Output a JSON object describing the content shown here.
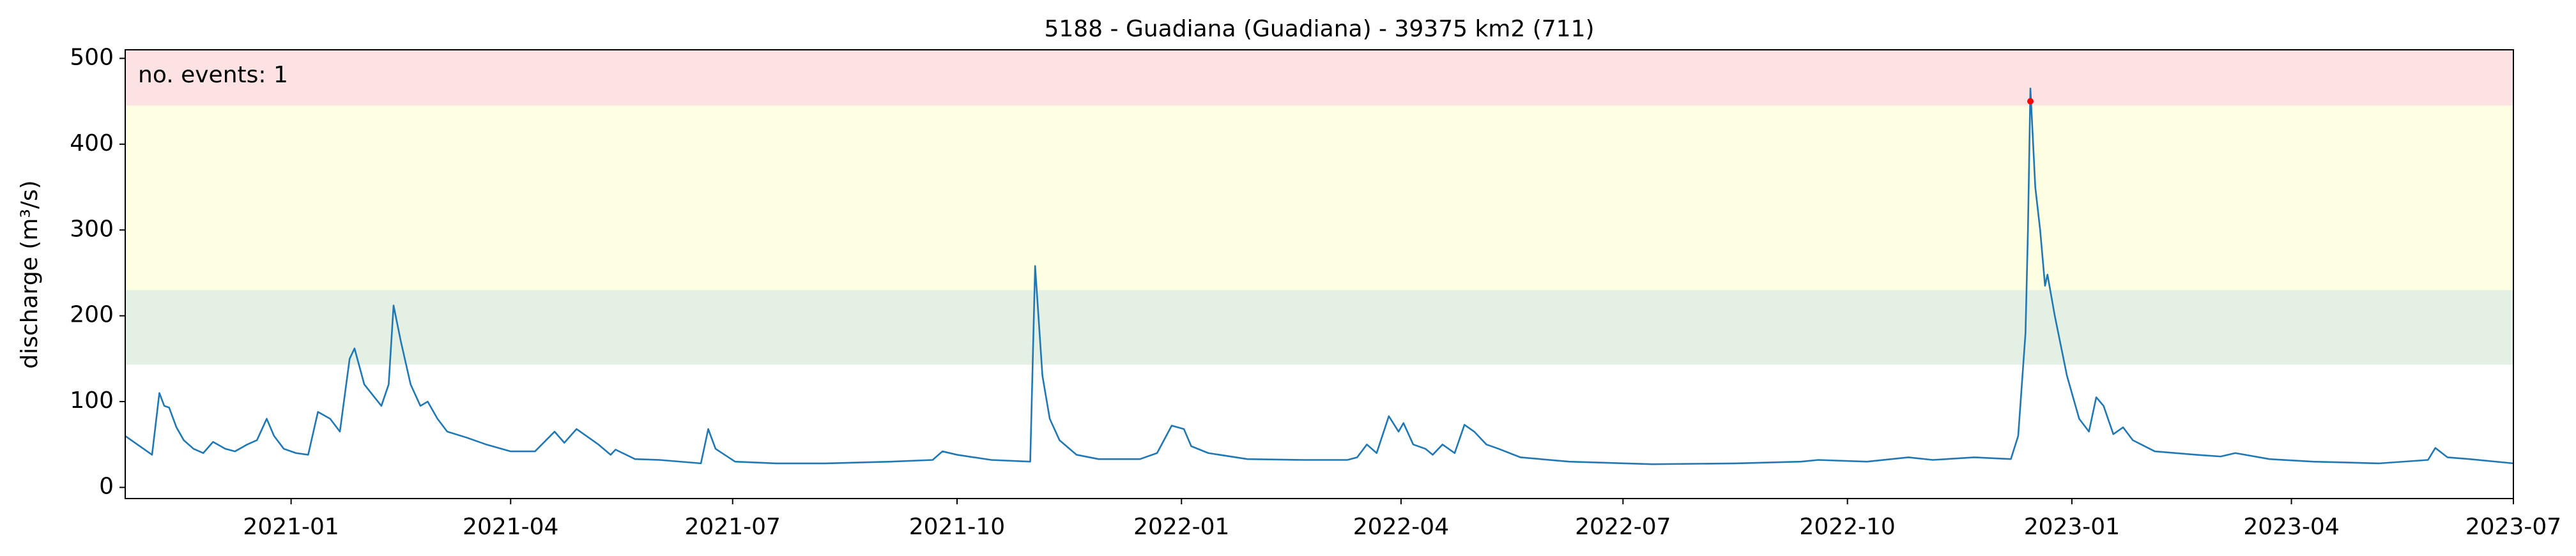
{
  "chart_data": {
    "type": "line",
    "title": "5188 - Guadiana (Guadiana) - 39375 km2 (711)",
    "y_label": "discharge (m³/s)",
    "annotation": "no. events: 1",
    "annotation_color": "#cc0000",
    "x": [
      "2020-10-25",
      "2020-11-05",
      "2020-11-08",
      "2020-11-10",
      "2020-11-12",
      "2020-11-15",
      "2020-11-18",
      "2020-11-22",
      "2020-11-26",
      "2020-11-30",
      "2020-12-05",
      "2020-12-09",
      "2020-12-14",
      "2020-12-18",
      "2020-12-22",
      "2020-12-25",
      "2020-12-29",
      "2021-01-03",
      "2021-01-08",
      "2021-01-12",
      "2021-01-17",
      "2021-01-21",
      "2021-01-25",
      "2021-01-27",
      "2021-01-31",
      "2021-02-07",
      "2021-02-10",
      "2021-02-12",
      "2021-02-15",
      "2021-02-19",
      "2021-02-23",
      "2021-02-26",
      "2021-03-02",
      "2021-03-06",
      "2021-03-14",
      "2021-03-22",
      "2021-04-01",
      "2021-04-11",
      "2021-04-19",
      "2021-04-23",
      "2021-04-28",
      "2021-05-07",
      "2021-05-12",
      "2021-05-14",
      "2021-05-22",
      "2021-06-01",
      "2021-06-18",
      "2021-06-21",
      "2021-06-24",
      "2021-07-02",
      "2021-07-19",
      "2021-08-08",
      "2021-09-04",
      "2021-09-21",
      "2021-09-25",
      "2021-10-01",
      "2021-10-15",
      "2021-10-31",
      "2021-11-02",
      "2021-11-05",
      "2021-11-08",
      "2021-11-12",
      "2021-11-19",
      "2021-11-28",
      "2021-12-15",
      "2021-12-22",
      "2021-12-28",
      "2022-01-02",
      "2022-01-05",
      "2022-01-12",
      "2022-01-28",
      "2022-02-20",
      "2022-03-10",
      "2022-03-14",
      "2022-03-18",
      "2022-03-22",
      "2022-03-27",
      "2022-03-31",
      "2022-04-02",
      "2022-04-06",
      "2022-04-11",
      "2022-04-14",
      "2022-04-18",
      "2022-04-23",
      "2022-04-27",
      "2022-05-01",
      "2022-05-06",
      "2022-05-11",
      "2022-05-20",
      "2022-06-09",
      "2022-07-13",
      "2022-08-16",
      "2022-09-12",
      "2022-09-19",
      "2022-10-09",
      "2022-10-26",
      "2022-11-05",
      "2022-11-22",
      "2022-12-07",
      "2022-12-10",
      "2022-12-13",
      "2022-12-14",
      "2022-12-15",
      "2022-12-17",
      "2022-12-19",
      "2022-12-21",
      "2022-12-22",
      "2022-12-25",
      "2022-12-30",
      "2023-01-04",
      "2023-01-08",
      "2023-01-11",
      "2023-01-14",
      "2023-01-18",
      "2023-01-22",
      "2023-01-26",
      "2023-02-04",
      "2023-02-21",
      "2023-03-03",
      "2023-03-09",
      "2023-03-23",
      "2023-04-10",
      "2023-05-07",
      "2023-05-27",
      "2023-05-30",
      "2023-06-04",
      "2023-06-13",
      "2023-07-01"
    ],
    "series": [
      {
        "color": "#1f77b4",
        "values": [
          60,
          38,
          110,
          95,
          93,
          70,
          55,
          45,
          40,
          53,
          45,
          42,
          50,
          55,
          80,
          60,
          45,
          40,
          38,
          88,
          80,
          65,
          150,
          162,
          120,
          95,
          120,
          212,
          170,
          120,
          95,
          100,
          80,
          65,
          58,
          50,
          42,
          42,
          65,
          52,
          68,
          50,
          38,
          44,
          33,
          32,
          28,
          68,
          45,
          30,
          28,
          28,
          30,
          32,
          42,
          38,
          32,
          30,
          258,
          130,
          80,
          55,
          38,
          33,
          33,
          40,
          72,
          68,
          48,
          40,
          33,
          32,
          32,
          35,
          50,
          40,
          83,
          65,
          75,
          50,
          45,
          38,
          50,
          40,
          73,
          65,
          50,
          45,
          35,
          30,
          27,
          28,
          30,
          32,
          30,
          35,
          32,
          35,
          33,
          60,
          180,
          300,
          465,
          350,
          300,
          235,
          248,
          200,
          130,
          80,
          65,
          105,
          95,
          62,
          70,
          55,
          42,
          38,
          36,
          40,
          33,
          30,
          28,
          32,
          46,
          35,
          33,
          28
        ]
      }
    ],
    "events": {
      "color": "#ff0000",
      "x": [
        "2022-12-15"
      ],
      "values": [
        450
      ]
    },
    "thresholds": [
      143,
      230,
      445
    ],
    "band_colors": [
      "#e5f0e5",
      "#fefee3",
      "#fde2e4"
    ],
    "xlim": [
      "2020-10-25",
      "2023-07-01"
    ],
    "xticks": [
      "2021-01",
      "2021-04",
      "2021-07",
      "2021-10",
      "2022-01",
      "2022-04",
      "2022-07",
      "2022-10",
      "2023-01",
      "2023-04",
      "2023-07"
    ],
    "ylim": [
      -13,
      510
    ],
    "yticks": [
      0,
      100,
      200,
      300,
      400,
      500
    ]
  }
}
